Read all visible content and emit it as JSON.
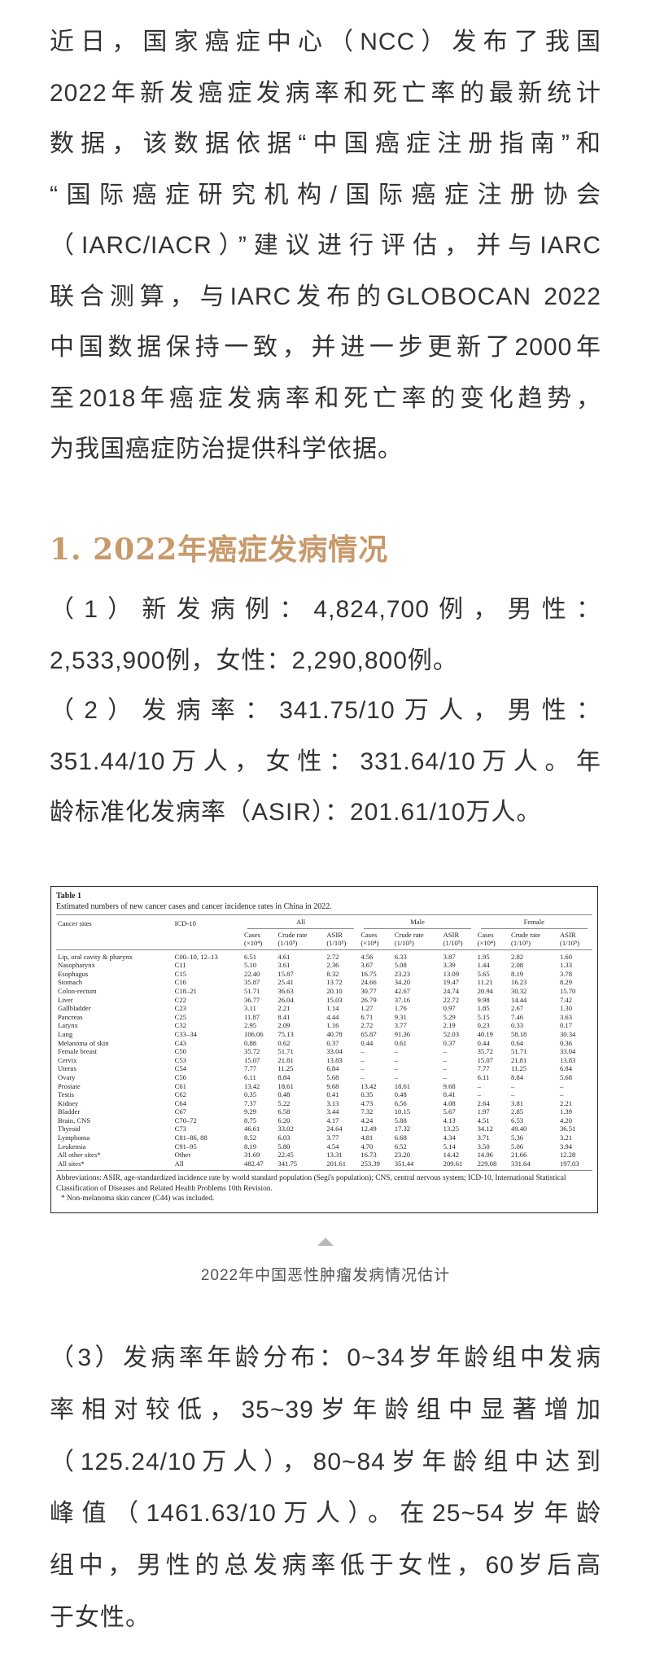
{
  "intro": {
    "lines": [
      "近日，国家癌症中心（NCC）发布了我国",
      "2022年新发癌症发病率和死亡率的最新统计",
      "数据，该数据依据“中国癌症注册指南”和",
      "“国际癌症研究机构/国际癌症注册协会",
      "（IARC/IACR）”建议进行评估，并与IARC",
      "联合测算，与IARC发布的GLOBOCAN 2022",
      "中国数据保持一致，并进一步更新了2000年",
      "至2018年癌症发病率和死亡率的变化趋势，",
      "为我国癌症防治提供科学依据。"
    ]
  },
  "section1": {
    "heading": "1. 2022年癌症发病情况",
    "heading_color": "#c8996a",
    "item1": [
      "（1）新发病例：4,824,700例，男性：",
      "2,533,900例，女性：2,290,800例。"
    ],
    "item2": [
      "（2）发病率：341.75/10万人，男性：",
      "351.44/10万人，女性：331.64/10万人。年",
      "龄标准化发病率（ASIR）：201.61/10万人。"
    ],
    "item3": [
      "（3）发病率年龄分布：0~34岁年龄组中发病",
      "率相对较低，35~39岁年龄组中显著增加",
      "（125.24/10万人），80~84岁年龄组中达到",
      "峰值（1461.63/10万人）。在25~54岁年龄",
      "组中，男性的总发病率低于女性，60岁后高",
      "于女性。"
    ]
  },
  "table": {
    "label": "Table 1",
    "caption": "Estimated numbers of new cancer cases and cancer incidence rates in China in 2022.",
    "col_site": "Cancer sites",
    "col_icd": "ICD-10",
    "groups": [
      "All",
      "Male",
      "Female"
    ],
    "sub_cases": "Cases",
    "sub_cases_unit": "(×10⁴)",
    "sub_crude": "Crude rate",
    "sub_crude_unit": "(1/10⁵)",
    "sub_asir": "ASIR",
    "sub_asir_unit": "(1/10⁵)",
    "rows": [
      [
        "Lip, oral cavity & pharynx",
        "C00–10, 12–13",
        "6.51",
        "4.61",
        "2.72",
        "4.56",
        "6.33",
        "3.87",
        "1.95",
        "2.82",
        "1.60"
      ],
      [
        "Nasopharynx",
        "C11",
        "5.10",
        "3.61",
        "2.36",
        "3.67",
        "5.08",
        "3.39",
        "1.44",
        "2.08",
        "1.33"
      ],
      [
        "Esophagus",
        "C15",
        "22.40",
        "15.87",
        "8.32",
        "16.75",
        "23.23",
        "13.09",
        "5.65",
        "8.19",
        "3.78"
      ],
      [
        "Stomach",
        "C16",
        "35.87",
        "25.41",
        "13.72",
        "24.66",
        "34.20",
        "19.47",
        "11.21",
        "16.23",
        "8.29"
      ],
      [
        "Colon-rectum",
        "C18–21",
        "51.71",
        "36.63",
        "20.10",
        "30.77",
        "42.67",
        "24.74",
        "20.94",
        "30.32",
        "15.70"
      ],
      [
        "Liver",
        "C22",
        "36.77",
        "26.04",
        "15.03",
        "26.79",
        "37.16",
        "22.72",
        "9.98",
        "14.44",
        "7.42"
      ],
      [
        "Gallbladder",
        "C23",
        "3.11",
        "2.21",
        "1.14",
        "1.27",
        "1.76",
        "0.97",
        "1.85",
        "2.67",
        "1.30"
      ],
      [
        "Pancreas",
        "C25",
        "11.87",
        "8.41",
        "4.44",
        "6.71",
        "9.31",
        "5.29",
        "5.15",
        "7.46",
        "3.63"
      ],
      [
        "Larynx",
        "C32",
        "2.95",
        "2.09",
        "1.16",
        "2.72",
        "3.77",
        "2.19",
        "0.23",
        "0.33",
        "0.17"
      ],
      [
        "Lung",
        "C33–34",
        "106.06",
        "75.13",
        "40.78",
        "65.87",
        "91.36",
        "52.03",
        "40.19",
        "58.18",
        "30.34"
      ],
      [
        "Melanoma of skin",
        "C43",
        "0.88",
        "0.62",
        "0.37",
        "0.44",
        "0.61",
        "0.37",
        "0.44",
        "0.64",
        "0.36"
      ],
      [
        "Female breast",
        "C50",
        "35.72",
        "51.71",
        "33.04",
        "–",
        "–",
        "–",
        "35.72",
        "51.71",
        "33.04"
      ],
      [
        "Cervix",
        "C53",
        "15.07",
        "21.81",
        "13.83",
        "–",
        "–",
        "–",
        "15.07",
        "21.81",
        "13.83"
      ],
      [
        "Uterus",
        "C54",
        "7.77",
        "11.25",
        "6.84",
        "–",
        "–",
        "–",
        "7.77",
        "11.25",
        "6.84"
      ],
      [
        "Ovary",
        "C56",
        "6.11",
        "8.84",
        "5.68",
        "–",
        "–",
        "–",
        "6.11",
        "8.84",
        "5.68"
      ],
      [
        "Prostate",
        "C61",
        "13.42",
        "18.61",
        "9.68",
        "13.42",
        "18.61",
        "9.68",
        "–",
        "–",
        "–"
      ],
      [
        "Testis",
        "C62",
        "0.35",
        "0.48",
        "0.41",
        "0.35",
        "0.48",
        "0.41",
        "–",
        "–",
        "–"
      ],
      [
        "Kidney",
        "C64",
        "7.37",
        "5.22",
        "3.13",
        "4.73",
        "6.56",
        "4.08",
        "2.64",
        "3.81",
        "2.21"
      ],
      [
        "Bladder",
        "C67",
        "9.29",
        "6.58",
        "3.44",
        "7.32",
        "10.15",
        "5.67",
        "1.97",
        "2.85",
        "1.39"
      ],
      [
        "Brain, CNS",
        "C70–72",
        "8.75",
        "6.20",
        "4.17",
        "4.24",
        "5.88",
        "4.13",
        "4.51",
        "6.53",
        "4.20"
      ],
      [
        "Thyroid",
        "C73",
        "46.61",
        "33.02",
        "24.64",
        "12.49",
        "17.32",
        "13.25",
        "34.12",
        "49.40",
        "36.51"
      ],
      [
        "Lymphoma",
        "C81–86, 88",
        "8.52",
        "6.03",
        "3.77",
        "4.81",
        "6.68",
        "4.34",
        "3.71",
        "5.36",
        "3.21"
      ],
      [
        "Leukemia",
        "C91–95",
        "8.19",
        "5.80",
        "4.54",
        "4.70",
        "6.52",
        "5.14",
        "3.50",
        "5.06",
        "3.94"
      ],
      [
        "All other sites*",
        "Other",
        "31.69",
        "22.45",
        "13.31",
        "16.73",
        "23.20",
        "14.42",
        "14.96",
        "21.66",
        "12.28"
      ],
      [
        "All sites*",
        "All",
        "482.47",
        "341.75",
        "201.61",
        "253.39",
        "351.44",
        "209.61",
        "229.08",
        "331.64",
        "197.03"
      ]
    ],
    "abbreviations": "Abbreviations: ASIR, age-standardized incidence rate by world standard population (Segi's population); CNS, central nervous system; ICD-10, International Statistical Classification of Diseases and Related Health Problems 10th Revision.",
    "footnote": "* Non-melanoma skin cancer (C44) was included."
  },
  "figure_caption": {
    "icon": "triangle-up-icon",
    "text": "2022年中国恶性肿瘤发病情况估计"
  }
}
